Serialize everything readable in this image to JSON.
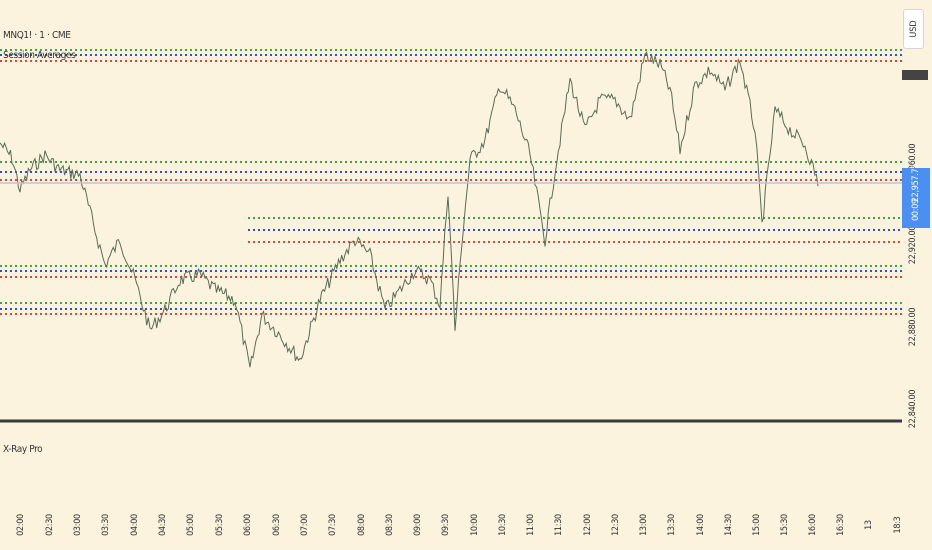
{
  "header": {
    "symbol_title": "MNQ1! · 1 · CME",
    "indicator_name": "Session Averages",
    "currency_button": "USD"
  },
  "lower_pane": {
    "indicator_name": "X-Ray Pro"
  },
  "price_axis": {
    "labels": [
      "22,960.00",
      "22,920.00",
      "22,880.00",
      "22,840.00"
    ],
    "current_price": "22,957.75",
    "countdown": "00:09"
  },
  "time_axis": {
    "labels": [
      "02:00",
      "02:30",
      "03:00",
      "03:30",
      "04:00",
      "04:30",
      "05:00",
      "05:30",
      "06:00",
      "06:30",
      "07:00",
      "07:30",
      "08:00",
      "08:30",
      "09:00",
      "09:30",
      "10:00",
      "10:30",
      "11:00",
      "11:30",
      "12:00",
      "12:30",
      "13:00",
      "13:30",
      "14:00",
      "14:30",
      "15:00",
      "15:30",
      "16:00",
      "16:30",
      "13",
      "18:3"
    ]
  },
  "colors": {
    "background": "#fbf3de",
    "candle": "#5b6b55",
    "level_green": "#3fa34d",
    "level_blue": "#2f4fc4",
    "level_red": "#e0443c",
    "current_price_tag": "#4b8ff0"
  }
}
